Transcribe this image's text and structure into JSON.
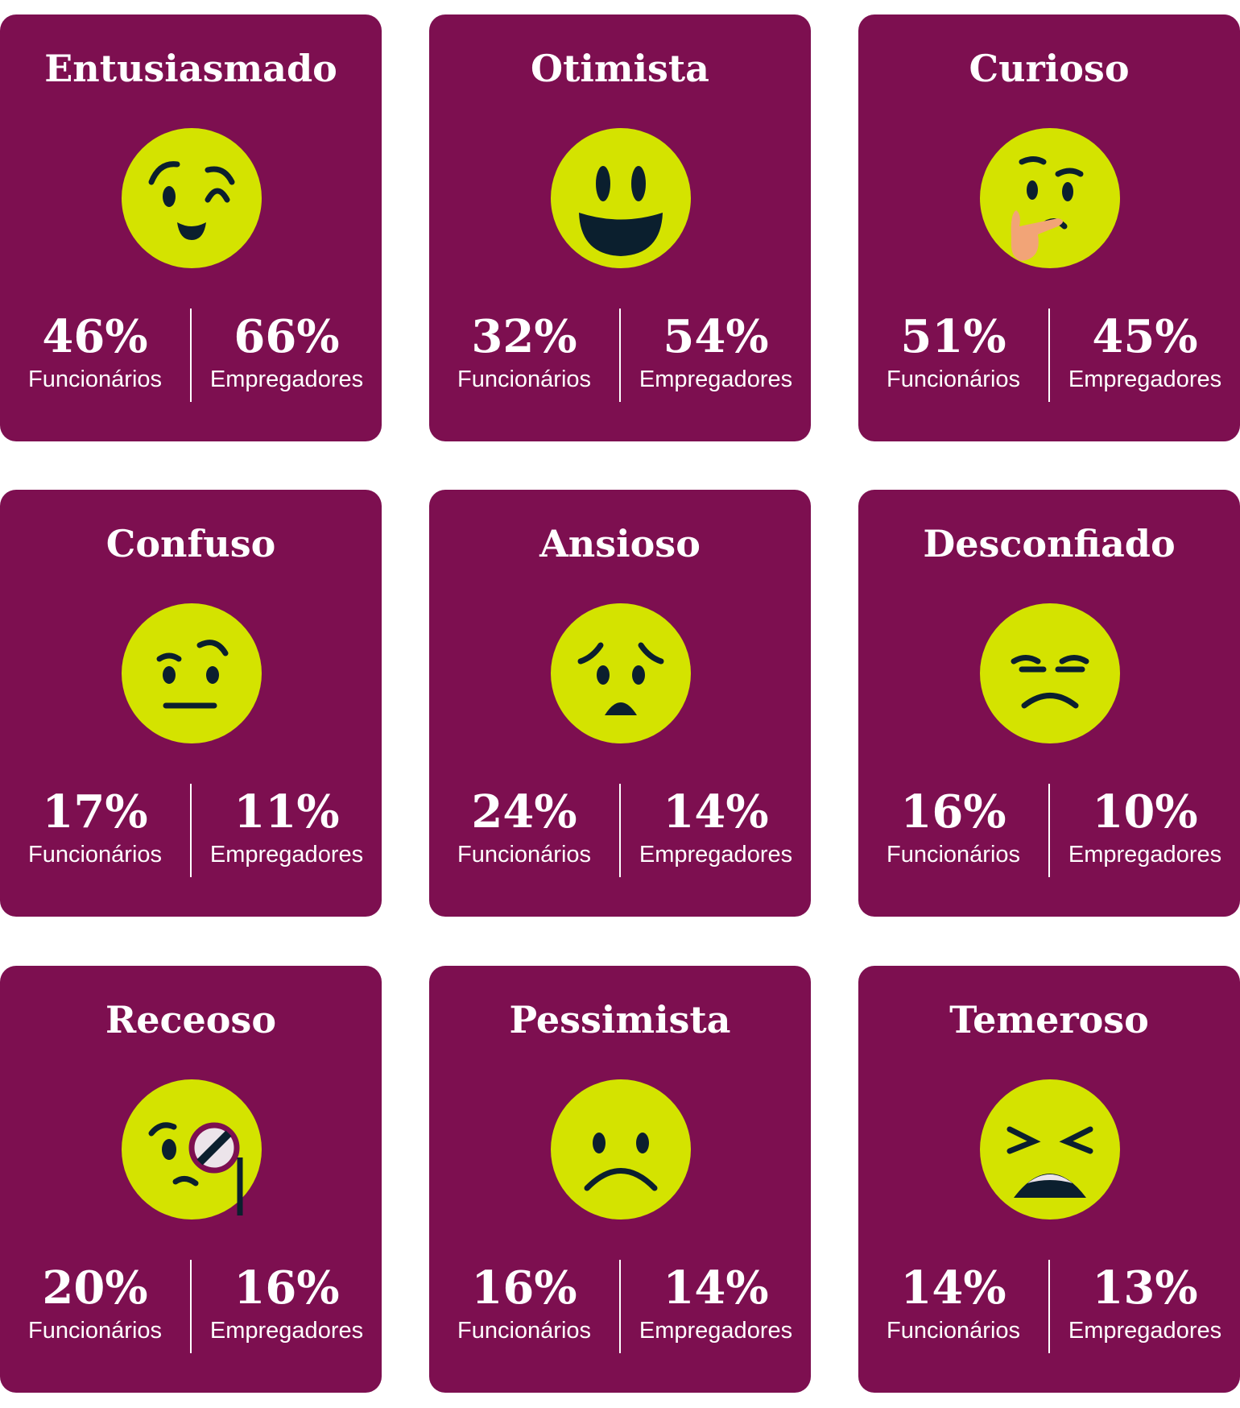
{
  "colors": {
    "card": "#7D0F50",
    "face": "#D4E300",
    "features": "#0B1F2E",
    "hand": "#F2A477"
  },
  "labels": {
    "employees": "Funcionários",
    "employers": "Empregadores"
  },
  "cards": [
    {
      "title": "Entusiasmado",
      "icon": "winking-face-icon",
      "employees": "46%",
      "employers": "66%"
    },
    {
      "title": "Otimista",
      "icon": "grinning-face-icon",
      "employees": "32%",
      "employers": "54%"
    },
    {
      "title": "Curioso",
      "icon": "thinking-face-icon",
      "employees": "51%",
      "employers": "45%"
    },
    {
      "title": "Confuso",
      "icon": "raised-eyebrow-face-icon",
      "employees": "17%",
      "employers": "11%"
    },
    {
      "title": "Ansioso",
      "icon": "worried-face-icon",
      "employees": "24%",
      "employers": "14%"
    },
    {
      "title": "Desconfiado",
      "icon": "unamused-face-icon",
      "employees": "16%",
      "employers": "10%"
    },
    {
      "title": "Receoso",
      "icon": "monocle-face-icon",
      "employees": "20%",
      "employers": "16%"
    },
    {
      "title": "Pessimista",
      "icon": "frowning-face-icon",
      "employees": "16%",
      "employers": "14%"
    },
    {
      "title": "Temeroso",
      "icon": "tired-face-icon",
      "employees": "14%",
      "employers": "13%"
    }
  ]
}
